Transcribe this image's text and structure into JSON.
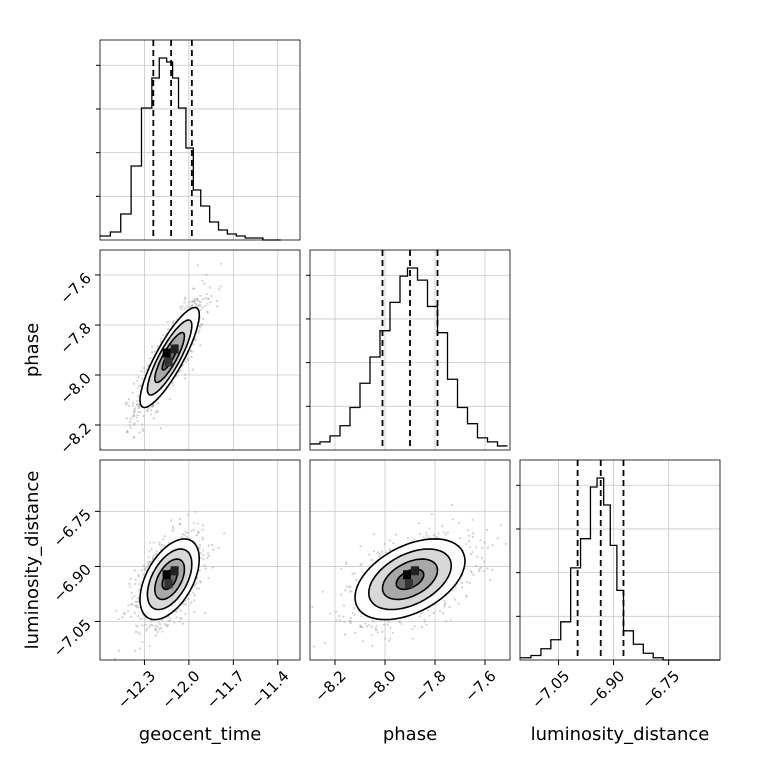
{
  "chart_data": {
    "type": "corner",
    "parameters": [
      "geocent_time",
      "phase",
      "luminosity_distance"
    ],
    "ranges": {
      "geocent_time": [
        -12.6,
        -11.25
      ],
      "phase": [
        -8.3,
        -7.5
      ],
      "luminosity_distance": [
        -7.155,
        -6.61
      ]
    },
    "ticks": {
      "geocent_time": [
        -12.3,
        -12.0,
        -11.7,
        -11.4
      ],
      "phase": [
        -8.2,
        -8.0,
        -7.8,
        -7.6
      ],
      "luminosity_distance": [
        -7.05,
        -6.9,
        -6.75
      ]
    },
    "tick_labels": {
      "geocent_time": [
        "−12.3",
        "−12.0",
        "−11.7",
        "−11.4"
      ],
      "phase": [
        "−8.2",
        "−8.0",
        "−7.8",
        "−7.6"
      ],
      "luminosity_distance": [
        "−7.05",
        "−6.90",
        "−6.75"
      ]
    },
    "quantiles": {
      "geocent_time": [
        -12.24,
        -12.12,
        -11.98
      ],
      "phase": [
        -8.01,
        -7.9,
        -7.79
      ],
      "luminosity_distance": [
        -6.998,
        -6.935,
        -6.873
      ]
    },
    "histograms": {
      "geocent_time": {
        "bin_edges": [
          -12.6,
          -12.53,
          -12.46,
          -12.39,
          -12.32,
          -12.25,
          -12.2,
          -12.15,
          -12.11,
          -12.07,
          -12.02,
          -11.97,
          -11.92,
          -11.86,
          -11.8,
          -11.74,
          -11.68,
          -11.62,
          -11.56,
          -11.5,
          -11.44,
          -11.38
        ],
        "counts": [
          2,
          4,
          13,
          37,
          66,
          81,
          91,
          89,
          81,
          66,
          46,
          25,
          17,
          9,
          5,
          3,
          2,
          1,
          1,
          0,
          0
        ]
      },
      "phase": {
        "bin_edges": [
          -8.3,
          -8.26,
          -8.22,
          -8.18,
          -8.14,
          -8.1,
          -8.06,
          -8.02,
          -7.98,
          -7.94,
          -7.91,
          -7.87,
          -7.83,
          -7.79,
          -7.75,
          -7.71,
          -7.67,
          -7.63,
          -7.59,
          -7.55,
          -7.51
        ],
        "counts": [
          3,
          4,
          7,
          12,
          21,
          33,
          46,
          59,
          73,
          86,
          90,
          84,
          71,
          58,
          35,
          21,
          13,
          6,
          4,
          2
        ]
      },
      "luminosity_distance": {
        "bin_edges": [
          -7.155,
          -7.125,
          -7.098,
          -7.071,
          -7.044,
          -7.017,
          -6.99,
          -6.963,
          -6.945,
          -6.927,
          -6.909,
          -6.891,
          -6.873,
          -6.846,
          -6.819,
          -6.792,
          -6.765,
          -6.738,
          -6.711,
          -6.684,
          -6.657,
          -6.61
        ],
        "counts": [
          1,
          2,
          5,
          9,
          17,
          41,
          54,
          77,
          81,
          69,
          51,
          31,
          13,
          7,
          3,
          1,
          0,
          0,
          0,
          0,
          0
        ]
      }
    },
    "joint_contours": {
      "geocent_time_vs_phase": {
        "center": [
          -12.13,
          -7.93
        ],
        "sigmas": [
          0.1,
          0.1
        ],
        "correlation": 0.85
      },
      "geocent_time_vs_luminosity_distance": {
        "center": [
          -12.13,
          -6.935
        ],
        "sigmas": [
          0.1,
          0.055
        ],
        "correlation": 0.5
      },
      "phase_vs_luminosity_distance": {
        "center": [
          -7.9,
          -6.935
        ],
        "sigmas": [
          0.11,
          0.055
        ],
        "correlation": 0.45
      }
    },
    "contour_levels_sigma": [
      0.5,
      1.0,
      1.5,
      2.0
    ],
    "grid": true,
    "quantile_line_style": "dashed"
  }
}
